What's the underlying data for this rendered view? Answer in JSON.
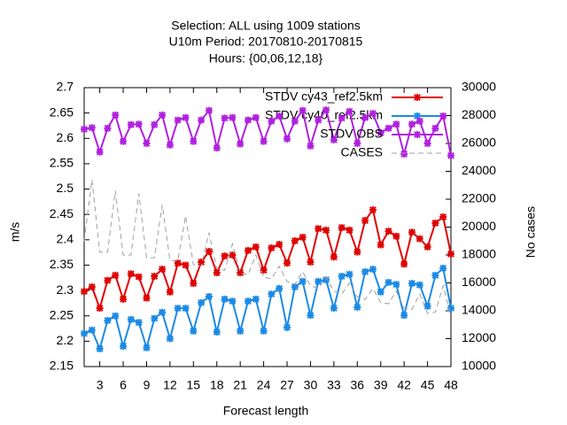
{
  "chart_data": {
    "type": "line",
    "title_lines": [
      "Selection: ALL using  1009 stations",
      "U10m   Period: 20170810-20170815",
      "Hours: {00,06,12,18}"
    ],
    "xlabel": "Forecast length",
    "ylabel": "m/s",
    "y2label": "No cases",
    "x": [
      1,
      2,
      3,
      4,
      5,
      6,
      7,
      8,
      9,
      10,
      11,
      12,
      13,
      14,
      15,
      16,
      17,
      18,
      19,
      20,
      21,
      22,
      23,
      24,
      25,
      26,
      27,
      28,
      29,
      30,
      31,
      32,
      33,
      34,
      35,
      36,
      37,
      38,
      39,
      40,
      41,
      42,
      43,
      44,
      45,
      46,
      47,
      48
    ],
    "xlim": [
      1,
      48
    ],
    "xticks": [
      3,
      6,
      9,
      12,
      15,
      18,
      21,
      24,
      27,
      30,
      33,
      36,
      39,
      42,
      45,
      48
    ],
    "ylim": [
      2.15,
      2.7
    ],
    "yticks": [
      2.15,
      2.2,
      2.25,
      2.3,
      2.35,
      2.4,
      2.45,
      2.5,
      2.55,
      2.6,
      2.65,
      2.7
    ],
    "y2lim": [
      10000,
      30000
    ],
    "y2ticks": [
      10000,
      12000,
      14000,
      16000,
      18000,
      20000,
      22000,
      24000,
      26000,
      28000,
      30000
    ],
    "legend": "top-right",
    "series": [
      {
        "name": "STDV cy43_ref2.5km",
        "color": "#e00000",
        "markers": true,
        "dashed": false,
        "values": [
          2.298,
          2.307,
          2.265,
          2.32,
          2.33,
          2.283,
          2.333,
          2.327,
          2.285,
          2.328,
          2.342,
          2.297,
          2.354,
          2.35,
          2.314,
          2.356,
          2.377,
          2.335,
          2.368,
          2.37,
          2.335,
          2.379,
          2.386,
          2.34,
          2.384,
          2.391,
          2.354,
          2.398,
          2.405,
          2.356,
          2.422,
          2.419,
          2.366,
          2.424,
          2.419,
          2.376,
          2.438,
          2.459,
          2.39,
          2.417,
          2.407,
          2.352,
          2.415,
          2.402,
          2.386,
          2.433,
          2.445,
          2.372
        ]
      },
      {
        "name": "STDV cy40_ref2.5km",
        "color": "#1a8ae6",
        "markers": true,
        "dashed": false,
        "values": [
          2.215,
          2.222,
          2.185,
          2.241,
          2.25,
          2.19,
          2.243,
          2.237,
          2.187,
          2.245,
          2.257,
          2.205,
          2.265,
          2.265,
          2.22,
          2.276,
          2.288,
          2.218,
          2.283,
          2.279,
          2.22,
          2.279,
          2.283,
          2.22,
          2.293,
          2.304,
          2.227,
          2.307,
          2.318,
          2.251,
          2.318,
          2.321,
          2.265,
          2.328,
          2.332,
          2.267,
          2.337,
          2.342,
          2.297,
          2.316,
          2.312,
          2.251,
          2.314,
          2.311,
          2.269,
          2.33,
          2.344,
          2.265
        ]
      },
      {
        "name": "STDV OBS",
        "color": "#b020e0",
        "markers": true,
        "dashed": false,
        "values": [
          2.618,
          2.621,
          2.573,
          2.62,
          2.646,
          2.594,
          2.627,
          2.628,
          2.59,
          2.627,
          2.646,
          2.587,
          2.636,
          2.641,
          2.594,
          2.636,
          2.655,
          2.581,
          2.64,
          2.641,
          2.589,
          2.636,
          2.641,
          2.594,
          2.634,
          2.644,
          2.599,
          2.634,
          2.655,
          2.585,
          2.636,
          2.656,
          2.597,
          2.64,
          2.653,
          2.59,
          2.641,
          2.649,
          2.611,
          2.62,
          2.628,
          2.569,
          2.628,
          2.634,
          2.59,
          2.62,
          2.644,
          2.566
        ]
      },
      {
        "name": "CASES",
        "color": "#a0a0a0",
        "markers": false,
        "dashed": true,
        "axis": "y2",
        "values": [
          19000,
          23400,
          18200,
          18200,
          22600,
          18000,
          18000,
          22400,
          17800,
          17800,
          21600,
          17600,
          17600,
          20800,
          17300,
          17200,
          19600,
          17000,
          16900,
          18800,
          16700,
          16600,
          18000,
          16400,
          16300,
          17200,
          16100,
          15900,
          16800,
          15800,
          15600,
          16400,
          15400,
          15200,
          16000,
          15000,
          14800,
          15600,
          14600,
          14500,
          15400,
          14200,
          14100,
          15200,
          13800,
          13900,
          15800,
          13600
        ]
      }
    ]
  }
}
